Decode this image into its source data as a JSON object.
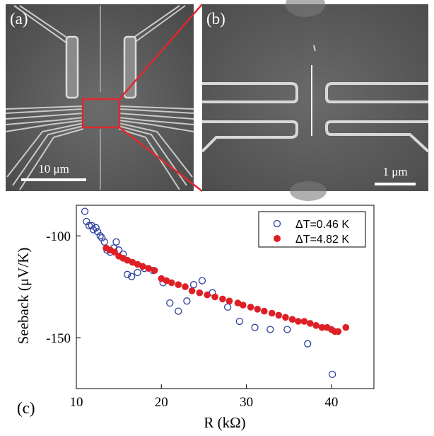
{
  "panels": {
    "a": {
      "label": "(a)",
      "scalebar": "10 μm"
    },
    "b": {
      "label": "(b)",
      "scalebar": "1 μm"
    }
  },
  "chart_data": {
    "type": "scatter",
    "panel_label": "(c)",
    "xlabel": "R (kΩ)",
    "ylabel": "Seeback (μV/K)",
    "xlim": [
      10,
      45
    ],
    "ylim": [
      -175,
      -85
    ],
    "xticks": [
      10,
      20,
      30,
      40
    ],
    "yticks": [
      -100,
      -150
    ],
    "legend_position": "top-right",
    "series": [
      {
        "name": "ΔT=0.46 K",
        "marker": "open-circle",
        "color": "#2b3f9e",
        "points": [
          [
            11.0,
            -88.0
          ],
          [
            11.2,
            -93.0
          ],
          [
            11.5,
            -95.0
          ],
          [
            11.8,
            -95.0
          ],
          [
            12.0,
            -97.0
          ],
          [
            12.3,
            -96.0
          ],
          [
            12.5,
            -98.0
          ],
          [
            12.8,
            -100.0
          ],
          [
            13.0,
            -101.0
          ],
          [
            13.3,
            -103.0
          ],
          [
            13.6,
            -107.0
          ],
          [
            14.0,
            -108.0
          ],
          [
            14.4,
            -106.0
          ],
          [
            14.7,
            -103.0
          ],
          [
            15.0,
            -107.0
          ],
          [
            15.5,
            -109.0
          ],
          [
            16.0,
            -119.0
          ],
          [
            16.5,
            -120.0
          ],
          [
            17.2,
            -118.0
          ],
          [
            18.0,
            -116.0
          ],
          [
            19.0,
            -117.0
          ],
          [
            20.2,
            -123.0
          ],
          [
            21.0,
            -133.0
          ],
          [
            22.0,
            -137.0
          ],
          [
            23.0,
            -132.0
          ],
          [
            23.8,
            -124.0
          ],
          [
            24.8,
            -122.0
          ],
          [
            26.0,
            -128.0
          ],
          [
            27.8,
            -135.0
          ],
          [
            29.2,
            -142.0
          ],
          [
            31.0,
            -145.0
          ],
          [
            32.8,
            -146.0
          ],
          [
            34.8,
            -146.0
          ],
          [
            37.2,
            -153.0
          ],
          [
            40.1,
            -168.0
          ]
        ]
      },
      {
        "name": "ΔT=4.82 K",
        "marker": "filled-circle",
        "color": "#dd1f26",
        "points": [
          [
            13.5,
            -106.0
          ],
          [
            14.0,
            -107.0
          ],
          [
            14.5,
            -108.0
          ],
          [
            15.0,
            -110.0
          ],
          [
            15.5,
            -111.0
          ],
          [
            16.0,
            -112.0
          ],
          [
            16.6,
            -113.0
          ],
          [
            17.2,
            -114.0
          ],
          [
            17.8,
            -115.0
          ],
          [
            18.5,
            -116.0
          ],
          [
            19.2,
            -117.0
          ],
          [
            20.0,
            -121.0
          ],
          [
            20.6,
            -122.0
          ],
          [
            21.2,
            -123.0
          ],
          [
            22.0,
            -124.0
          ],
          [
            22.8,
            -125.0
          ],
          [
            23.6,
            -127.0
          ],
          [
            24.5,
            -128.0
          ],
          [
            25.4,
            -129.0
          ],
          [
            26.3,
            -130.0
          ],
          [
            27.2,
            -131.0
          ],
          [
            28.0,
            -132.0
          ],
          [
            29.0,
            -133.0
          ],
          [
            29.6,
            -134.0
          ],
          [
            30.5,
            -135.0
          ],
          [
            31.3,
            -136.0
          ],
          [
            32.1,
            -137.0
          ],
          [
            33.0,
            -138.0
          ],
          [
            33.8,
            -139.0
          ],
          [
            34.6,
            -140.0
          ],
          [
            35.4,
            -141.0
          ],
          [
            36.1,
            -142.0
          ],
          [
            36.8,
            -142.0
          ],
          [
            37.5,
            -143.0
          ],
          [
            38.2,
            -144.0
          ],
          [
            38.9,
            -145.0
          ],
          [
            39.5,
            -145.0
          ],
          [
            40.0,
            -146.0
          ],
          [
            40.4,
            -147.0
          ],
          [
            40.8,
            -147.0
          ],
          [
            41.7,
            -145.0
          ]
        ]
      }
    ]
  }
}
